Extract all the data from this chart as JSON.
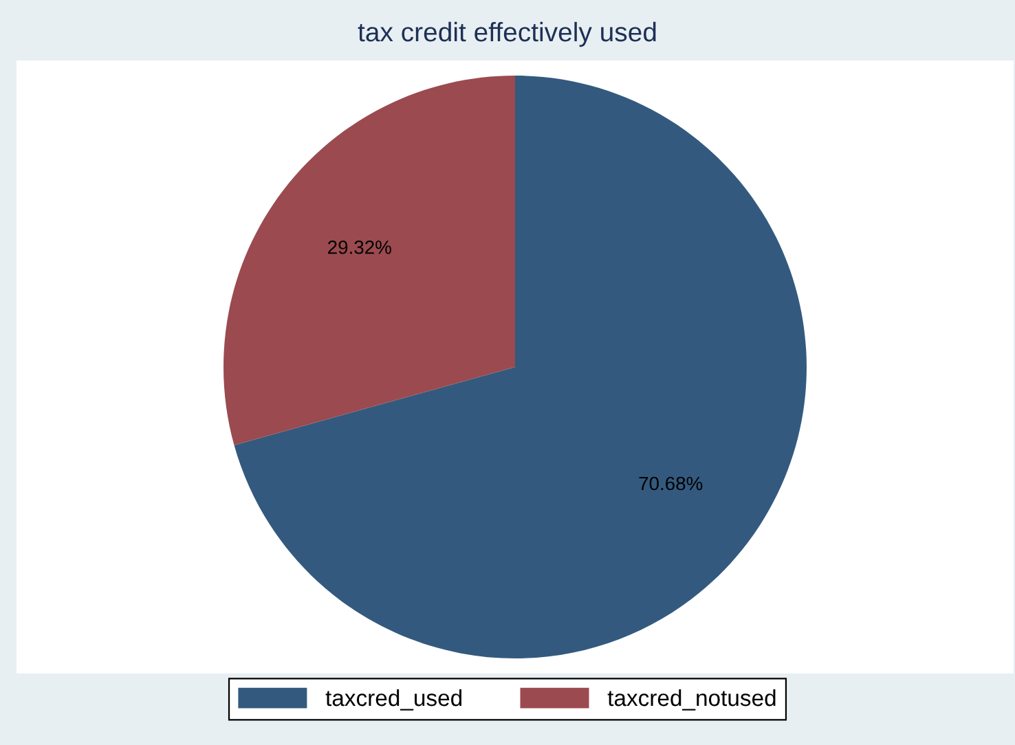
{
  "chart_data": {
    "type": "pie",
    "title": "tax credit effectively used",
    "categories": [
      "taxcred_used",
      "taxcred_notused"
    ],
    "values": [
      70.68,
      29.32
    ],
    "colors": [
      "#335a7e",
      "#9b4a4f"
    ],
    "value_labels": [
      "70.68%",
      "29.32%"
    ],
    "legend": "bottom"
  }
}
